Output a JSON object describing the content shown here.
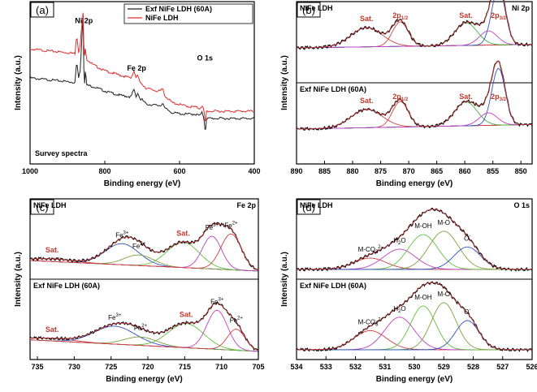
{
  "chart_data": [
    {
      "id": "a",
      "type": "line",
      "panel_label": "(a)",
      "xlabel": "Binding energy (eV)",
      "ylabel": "Intensity (a.u.)",
      "xlim": [
        1000,
        400
      ],
      "xticks": [
        1000,
        800,
        600,
        400
      ],
      "ylim": [
        0,
        1
      ],
      "sample_label": "Survey spectra",
      "legend": [
        "Exf NiFe LDH (60A)",
        "NiFe LDH"
      ],
      "series": [
        {
          "name": "Exf NiFe LDH (60A)",
          "color": "#222222",
          "x": [
            1000,
            960,
            920,
            880,
            875,
            870,
            866,
            862,
            858,
            856,
            854,
            852,
            848,
            830,
            800,
            760,
            730,
            722,
            716,
            712,
            705,
            700,
            690,
            660,
            650,
            645,
            640,
            632,
            620,
            590,
            570,
            560,
            545,
            540,
            535,
            532,
            531,
            530,
            528,
            520,
            500,
            470,
            440,
            400
          ],
          "y": [
            0.55,
            0.54,
            0.53,
            0.52,
            0.66,
            0.55,
            0.6,
            0.8,
            0.99,
            0.62,
            0.52,
            0.6,
            0.5,
            0.49,
            0.46,
            0.43,
            0.42,
            0.47,
            0.42,
            0.45,
            0.4,
            0.4,
            0.37,
            0.36,
            0.36,
            0.38,
            0.34,
            0.33,
            0.31,
            0.3,
            0.3,
            0.3,
            0.29,
            0.31,
            0.28,
            0.2,
            0.04,
            0.2,
            0.27,
            0.27,
            0.27,
            0.27,
            0.27,
            0.27
          ]
        },
        {
          "name": "NiFe LDH",
          "color": "#e03030",
          "x": [
            1000,
            960,
            920,
            880,
            875,
            870,
            866,
            862,
            858,
            856,
            854,
            852,
            848,
            830,
            800,
            760,
            730,
            722,
            716,
            712,
            705,
            700,
            690,
            660,
            650,
            645,
            640,
            632,
            620,
            590,
            570,
            560,
            545,
            540,
            535,
            532,
            531,
            530,
            528,
            520,
            500,
            470,
            440,
            400
          ],
          "y": [
            0.75,
            0.74,
            0.73,
            0.72,
            0.85,
            0.73,
            0.78,
            0.9,
            1.0,
            0.78,
            0.7,
            0.75,
            0.68,
            0.64,
            0.6,
            0.57,
            0.55,
            0.6,
            0.55,
            0.57,
            0.51,
            0.51,
            0.48,
            0.46,
            0.46,
            0.48,
            0.43,
            0.41,
            0.38,
            0.36,
            0.35,
            0.35,
            0.34,
            0.36,
            0.33,
            0.25,
            0.05,
            0.25,
            0.32,
            0.32,
            0.32,
            0.32,
            0.32,
            0.32
          ]
        }
      ],
      "annotations": [
        {
          "text": "Ni 2p",
          "x": 856,
          "y": 0.93
        },
        {
          "text": "Fe 2p",
          "x": 715,
          "y": 0.6
        },
        {
          "text": "O 1s",
          "x": 532,
          "y": 0.67
        }
      ]
    },
    {
      "id": "b",
      "type": "line",
      "panel_label": "(b)",
      "xlabel": "Binding energy (eV)",
      "ylabel": "Intensity (a.u.)",
      "xlim": [
        890,
        848
      ],
      "xticks": [
        890,
        885,
        880,
        875,
        870,
        865,
        860,
        855,
        850
      ],
      "corner_label": "Ni 2p",
      "subpanels": [
        {
          "sample": "NiFe LDH",
          "background": {
            "x": [
              890,
              848
            ],
            "y": [
              0.3,
              0.36
            ]
          },
          "peaks": [
            {
              "label": "Sat.",
              "center": 877.5,
              "height": 0.34,
              "width": 2.8,
              "color": "#d04040"
            },
            {
              "label": "2p1/2",
              "center": 871.5,
              "height": 0.43,
              "width": 1.4,
              "color": "#d04040"
            },
            {
              "label": "Sat.",
              "center": 859.8,
              "height": 0.4,
              "width": 2.0,
              "color": "#40b040"
            },
            {
              "label": "2p3/2",
              "center": 854.0,
              "height": 1.0,
              "width": 1.2,
              "color": "#3050c0"
            },
            {
              "label": "",
              "center": 855.8,
              "height": 0.25,
              "width": 1.6,
              "color": "#c040c0"
            }
          ]
        },
        {
          "sample": "Exf NiFe LDH (60A)",
          "background": {
            "x": [
              890,
              848
            ],
            "y": [
              0.3,
              0.38
            ]
          },
          "peaks": [
            {
              "label": "Sat.",
              "center": 877.5,
              "height": 0.32,
              "width": 2.8,
              "color": "#d04040"
            },
            {
              "label": "2p1/2",
              "center": 871.5,
              "height": 0.45,
              "width": 1.4,
              "color": "#d04040"
            },
            {
              "label": "Sat.",
              "center": 859.8,
              "height": 0.42,
              "width": 2.0,
              "color": "#40b040"
            },
            {
              "label": "2p3/2",
              "center": 854.0,
              "height": 1.0,
              "width": 1.2,
              "color": "#3050c0"
            },
            {
              "label": "",
              "center": 855.8,
              "height": 0.22,
              "width": 1.6,
              "color": "#c040c0"
            }
          ]
        }
      ]
    },
    {
      "id": "c",
      "type": "line",
      "panel_label": "(c)",
      "xlabel": "Binding energy (eV)",
      "ylabel": "Intensity (a.u.)",
      "xlim": [
        736,
        705
      ],
      "xticks": [
        735,
        730,
        725,
        720,
        715,
        710,
        705
      ],
      "corner_label": "Fe 2p",
      "subpanels": [
        {
          "sample": "NiFe LDH",
          "background": {
            "x": [
              736,
              705
            ],
            "y": [
              0.2,
              0.0
            ]
          },
          "peaks": [
            {
              "label": "Sat.",
              "center": 733.0,
              "height": 0.05,
              "width": 3.0,
              "color": "#d04040"
            },
            {
              "label": "Fe3+",
              "center": 723.5,
              "height": 0.4,
              "width": 2.3,
              "color": "#3050c0"
            },
            {
              "label": "Fe2+",
              "center": 721.2,
              "height": 0.2,
              "width": 2.0,
              "color": "#80a040"
            },
            {
              "label": "Sat.",
              "center": 715.2,
              "height": 0.48,
              "width": 2.2,
              "color": "#60c040"
            },
            {
              "label": "Fe3+",
              "center": 711.3,
              "height": 0.62,
              "width": 1.3,
              "color": "#c040c0"
            },
            {
              "label": "Fe2+",
              "center": 708.7,
              "height": 0.68,
              "width": 1.4,
              "color": "#d04040"
            }
          ]
        },
        {
          "sample": "Exf NiFe LDH (60A)",
          "background": {
            "x": [
              736,
              705
            ],
            "y": [
              0.22,
              0.0
            ]
          },
          "peaks": [
            {
              "label": "Sat.",
              "center": 733.0,
              "height": 0.05,
              "width": 3.0,
              "color": "#d04040"
            },
            {
              "label": "Fe3+",
              "center": 724.5,
              "height": 0.34,
              "width": 2.8,
              "color": "#3050c0"
            },
            {
              "label": "Fe2+",
              "center": 721.0,
              "height": 0.16,
              "width": 2.2,
              "color": "#80a040"
            },
            {
              "label": "Sat.",
              "center": 714.8,
              "height": 0.46,
              "width": 2.4,
              "color": "#60c040"
            },
            {
              "label": "Fe3+",
              "center": 710.6,
              "height": 0.74,
              "width": 1.4,
              "color": "#c040c0"
            },
            {
              "label": "Fe2+",
              "center": 708.0,
              "height": 0.4,
              "width": 1.2,
              "color": "#d04040"
            }
          ]
        }
      ]
    },
    {
      "id": "d",
      "type": "line",
      "panel_label": "(d)",
      "xlabel": "Binding energy (eV)",
      "ylabel": "Intensity (a.u.)",
      "xlim": [
        534,
        526
      ],
      "xticks": [
        534,
        533,
        532,
        531,
        530,
        529,
        528,
        527,
        526
      ],
      "corner_label": "O 1s",
      "subpanels": [
        {
          "sample": "NiFe LDH",
          "background": {
            "x": [
              534,
              526
            ],
            "y": [
              0.06,
              0.06
            ]
          },
          "peaks": [
            {
              "label": "M-CO3 2-",
              "center": 531.5,
              "height": 0.2,
              "width": 0.55,
              "color": "#d04040"
            },
            {
              "label": "H2O",
              "center": 530.5,
              "height": 0.36,
              "width": 0.55,
              "color": "#c040c0"
            },
            {
              "label": "M-OH",
              "center": 529.7,
              "height": 0.62,
              "width": 0.5,
              "color": "#60c040"
            },
            {
              "label": "M-O",
              "center": 529.0,
              "height": 0.68,
              "width": 0.5,
              "color": "#80a040"
            },
            {
              "label": "O-",
              "center": 528.2,
              "height": 0.4,
              "width": 0.45,
              "color": "#3050c0"
            }
          ]
        },
        {
          "sample": "Exf NiFe LDH (60A)",
          "background": {
            "x": [
              534,
              526
            ],
            "y": [
              0.06,
              0.06
            ]
          },
          "peaks": [
            {
              "label": "M-CO3 2-",
              "center": 531.5,
              "height": 0.34,
              "width": 0.55,
              "color": "#d04040"
            },
            {
              "label": "H2O",
              "center": 530.5,
              "height": 0.58,
              "width": 0.5,
              "color": "#c040c0"
            },
            {
              "label": "M-OH",
              "center": 529.7,
              "height": 0.78,
              "width": 0.42,
              "color": "#60c040"
            },
            {
              "label": "M-O",
              "center": 529.0,
              "height": 0.84,
              "width": 0.42,
              "color": "#80a040"
            },
            {
              "label": "O-",
              "center": 528.2,
              "height": 0.52,
              "width": 0.4,
              "color": "#3050c0"
            }
          ]
        }
      ]
    }
  ]
}
